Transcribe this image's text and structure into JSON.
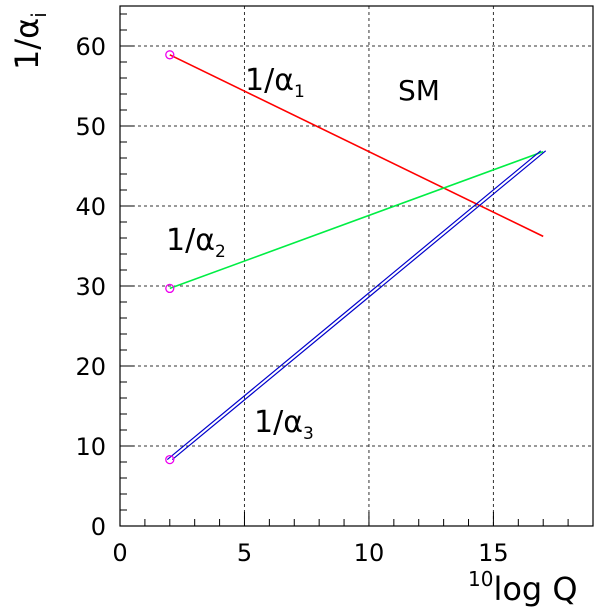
{
  "chart_data": {
    "type": "line",
    "title": "",
    "xlabel_sup": "10",
    "xlabel_main": "log Q",
    "ylabel_main": "1/α",
    "ylabel_sub": "i",
    "xlim": [
      0,
      19
    ],
    "ylim": [
      0,
      65
    ],
    "x_ticks": [
      0,
      5,
      10,
      15
    ],
    "y_ticks": [
      0,
      10,
      20,
      30,
      40,
      50,
      60
    ],
    "grid": true,
    "annotation": "SM",
    "colors": {
      "alpha1": "#ff0000",
      "alpha2": "#00ee44",
      "alpha3": "#0000cc",
      "marker": "#ee00ee"
    },
    "series": [
      {
        "label_main": "1/α",
        "label_sub": "1",
        "x": [
          2,
          17
        ],
        "y": [
          58.9,
          36.2
        ]
      },
      {
        "label_main": "1/α",
        "label_sub": "2",
        "x": [
          2,
          17
        ],
        "y": [
          29.7,
          46.8
        ]
      },
      {
        "label_main": "1/α",
        "label_sub": "3",
        "x": [
          2,
          17
        ],
        "y": [
          8.3,
          46.9
        ]
      }
    ]
  }
}
